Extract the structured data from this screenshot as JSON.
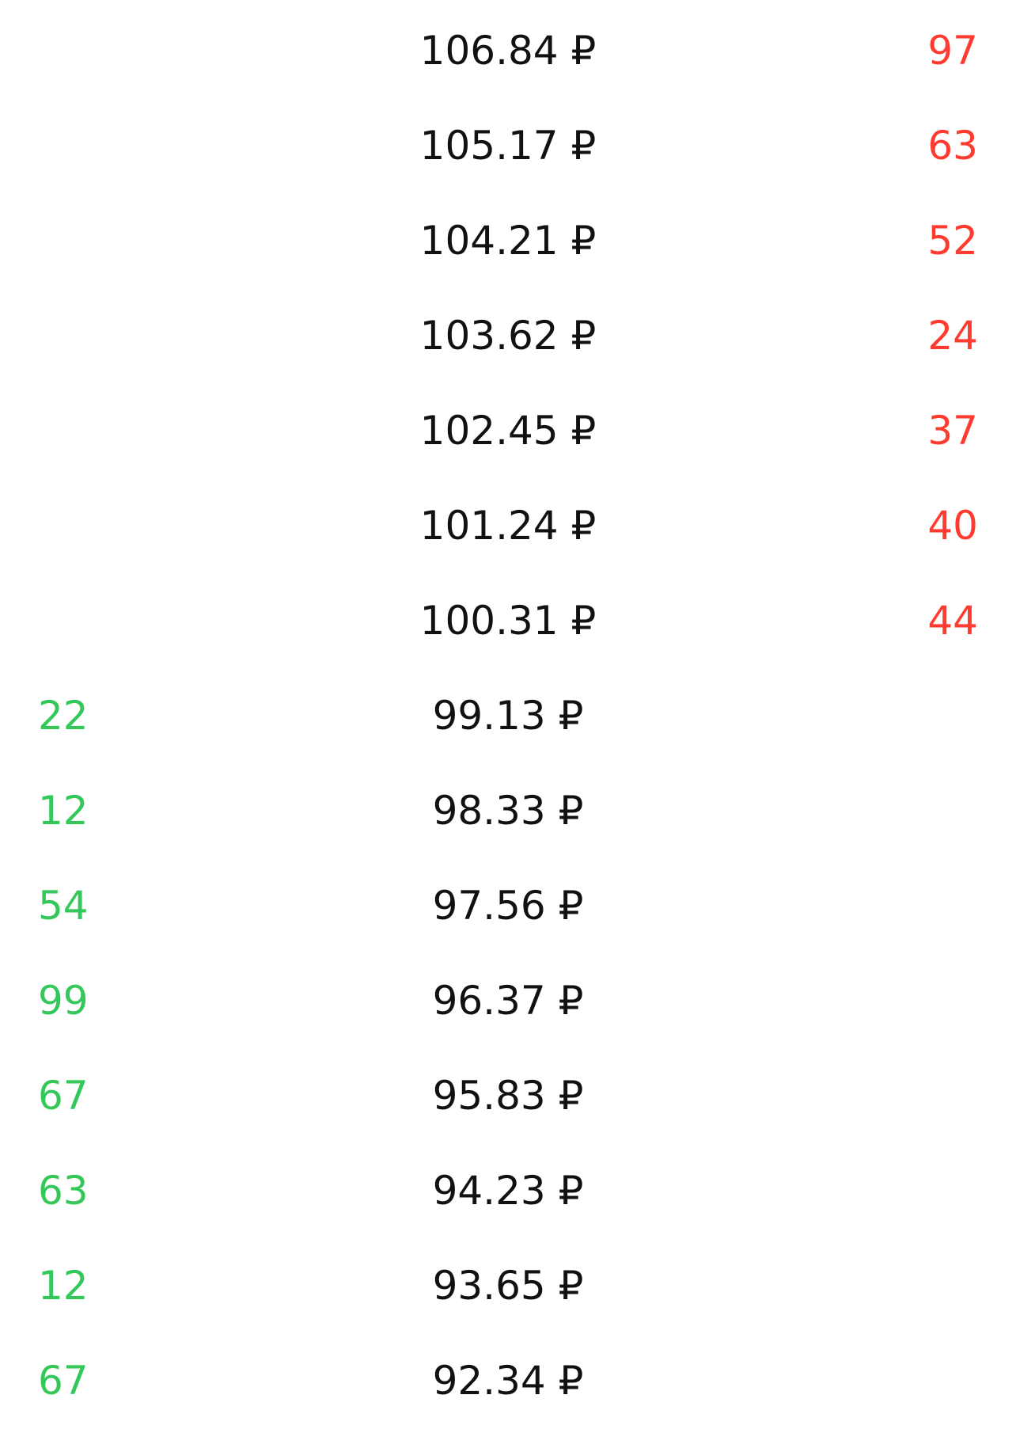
{
  "colors": {
    "bid": "#34c759",
    "ask": "#ff3b30",
    "price": "#111111",
    "background": "#ffffff"
  },
  "rows": [
    {
      "bid": "",
      "price": "106.84 ₽",
      "ask": "97"
    },
    {
      "bid": "",
      "price": "105.17 ₽",
      "ask": "63"
    },
    {
      "bid": "",
      "price": "104.21 ₽",
      "ask": "52"
    },
    {
      "bid": "",
      "price": "103.62 ₽",
      "ask": "24"
    },
    {
      "bid": "",
      "price": "102.45 ₽",
      "ask": "37"
    },
    {
      "bid": "",
      "price": "101.24 ₽",
      "ask": "40"
    },
    {
      "bid": "",
      "price": "100.31 ₽",
      "ask": "44"
    },
    {
      "bid": "22",
      "price": "99.13 ₽",
      "ask": ""
    },
    {
      "bid": "12",
      "price": "98.33 ₽",
      "ask": ""
    },
    {
      "bid": "54",
      "price": "97.56 ₽",
      "ask": ""
    },
    {
      "bid": "99",
      "price": "96.37 ₽",
      "ask": ""
    },
    {
      "bid": "67",
      "price": "95.83 ₽",
      "ask": ""
    },
    {
      "bid": "63",
      "price": "94.23 ₽",
      "ask": ""
    },
    {
      "bid": "12",
      "price": "93.65 ₽",
      "ask": ""
    },
    {
      "bid": "67",
      "price": "92.34 ₽",
      "ask": ""
    }
  ]
}
